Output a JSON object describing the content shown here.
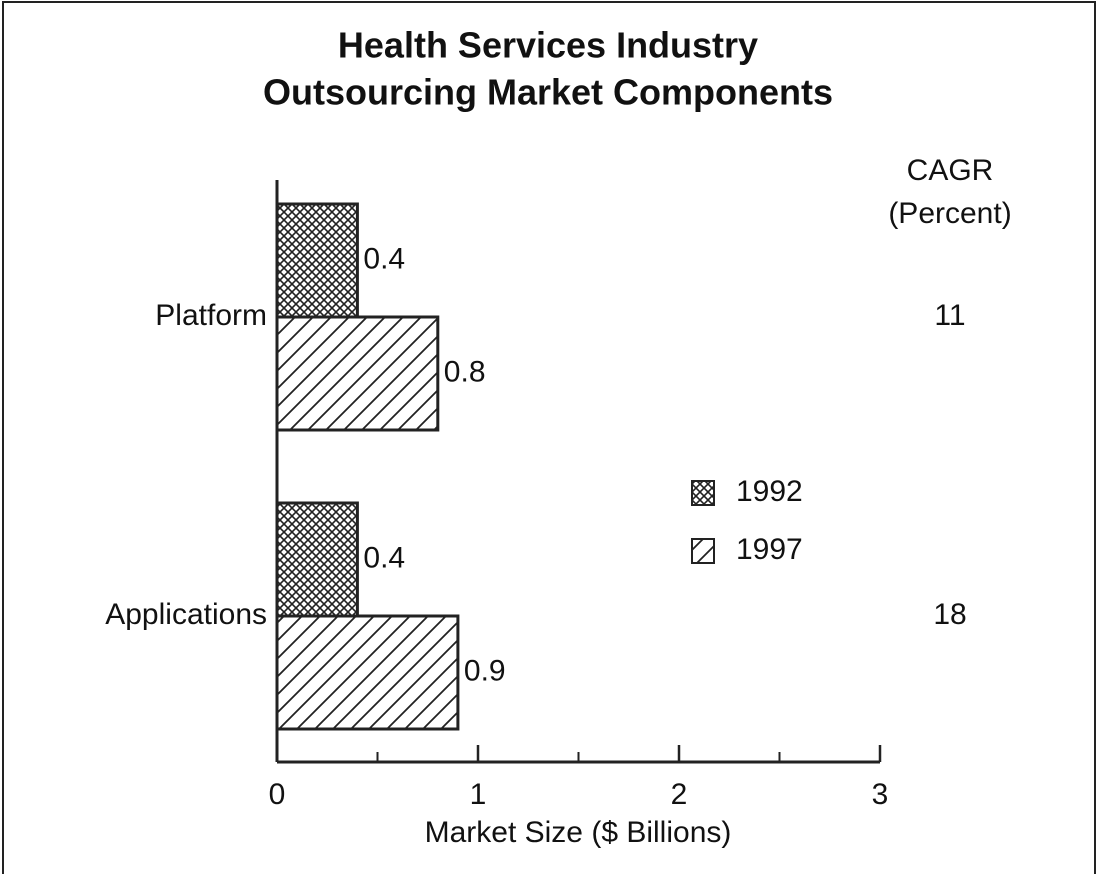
{
  "chart_data": {
    "type": "barh",
    "title": [
      "Health Services Industry",
      "Outsourcing Market Components"
    ],
    "categories": [
      "Platform",
      "Applications"
    ],
    "series": [
      {
        "name": "1992",
        "pattern": "crosshatch",
        "color": "#222222",
        "values": [
          0.4,
          0.4
        ]
      },
      {
        "name": "1997",
        "pattern": "diagonal",
        "color": "#222222",
        "values": [
          0.8,
          0.9
        ]
      }
    ],
    "xlabel": "Market Size ($ Billions)",
    "xlim": [
      0,
      3
    ],
    "xticks": [
      0,
      1,
      2,
      3
    ],
    "xticks_minor": [
      0.5,
      1.5,
      2.5
    ],
    "legend": "right",
    "cagr": {
      "title": [
        "CAGR",
        "(Percent)"
      ],
      "values": [
        11,
        18
      ]
    }
  }
}
